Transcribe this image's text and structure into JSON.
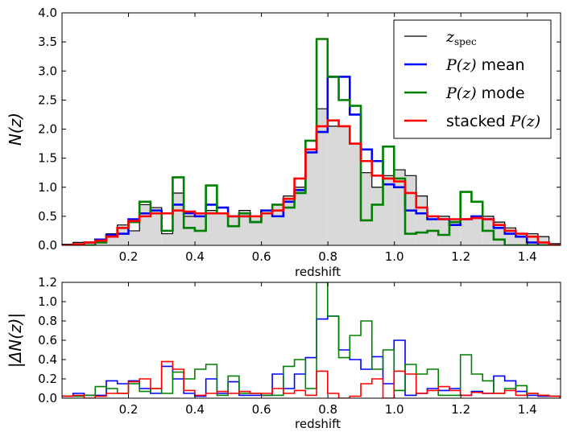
{
  "chart_data": [
    {
      "type": "histogram",
      "title": "",
      "xlabel": "redshift",
      "ylabel": "N(z)",
      "xlim": [
        0.0,
        1.5
      ],
      "ylim": [
        0.0,
        4.0
      ],
      "xticks": [
        0.2,
        0.4,
        0.6,
        0.8,
        1.0,
        1.2,
        1.4
      ],
      "xtick_labels": [
        "0.2",
        "0.4",
        "0.6",
        "0.8",
        "1.0",
        "1.2",
        "1.4"
      ],
      "yticks": [
        0.0,
        0.5,
        1.0,
        1.5,
        2.0,
        2.5,
        3.0,
        3.5,
        4.0
      ],
      "ytick_labels": [
        "0.0",
        "0.5",
        "1.0",
        "1.5",
        "2.0",
        "2.5",
        "3.0",
        "3.5",
        "4.0"
      ],
      "bin_start": 0.0,
      "bin_width": 0.0333,
      "legend": {
        "position": "top-right",
        "entries": [
          {
            "label": "z",
            "sub": "spec",
            "prefix": "",
            "suffix": "",
            "color": "#000000"
          },
          {
            "label": "P(z)",
            "sub": "",
            "prefix": "",
            "suffix": " mean",
            "color": "#0000ff"
          },
          {
            "label": "P(z)",
            "sub": "",
            "prefix": "",
            "suffix": " mode",
            "color": "#008000"
          },
          {
            "label": "P(z)",
            "sub": "",
            "prefix": "stacked ",
            "suffix": "",
            "color": "#ff0000"
          }
        ]
      },
      "series": [
        {
          "name": "z_spec",
          "color": "#000000",
          "fill": "#d9d9d9",
          "values": [
            0.02,
            0.05,
            0.05,
            0.1,
            0.2,
            0.35,
            0.25,
            0.7,
            0.65,
            0.2,
            0.9,
            0.5,
            0.55,
            0.6,
            0.55,
            0.5,
            0.6,
            0.5,
            0.6,
            0.7,
            0.85,
            1.0,
            1.6,
            2.35,
            2.05,
            2.05,
            1.75,
            1.25,
            1.0,
            1.2,
            1.3,
            1.2,
            0.85,
            0.5,
            0.5,
            0.45,
            0.45,
            0.5,
            0.5,
            0.4,
            0.3,
            0.2,
            0.2,
            0.15,
            0.03,
            0.03
          ]
        },
        {
          "name": "P(z) mean",
          "color": "#0000ff",
          "values": [
            0.0,
            0.0,
            0.05,
            0.1,
            0.18,
            0.2,
            0.45,
            0.55,
            0.6,
            0.55,
            0.7,
            0.55,
            0.5,
            0.7,
            0.65,
            0.5,
            0.5,
            0.4,
            0.6,
            0.5,
            0.75,
            0.95,
            1.6,
            1.95,
            2.9,
            2.9,
            2.25,
            1.65,
            1.45,
            1.05,
            1.0,
            0.6,
            0.55,
            0.45,
            0.45,
            0.35,
            0.45,
            0.5,
            0.45,
            0.3,
            0.2,
            0.15,
            0.05,
            0.0,
            0.0,
            0.0
          ]
        },
        {
          "name": "P(z) mode",
          "color": "#008000",
          "values": [
            0.0,
            0.0,
            0.0,
            0.05,
            0.15,
            0.3,
            0.4,
            0.75,
            0.55,
            0.25,
            1.17,
            0.3,
            0.25,
            1.03,
            0.55,
            0.33,
            0.55,
            0.4,
            0.55,
            0.7,
            0.65,
            0.9,
            1.8,
            3.55,
            2.9,
            2.5,
            2.4,
            0.43,
            0.7,
            1.7,
            1.15,
            0.2,
            0.22,
            0.25,
            0.18,
            0.4,
            0.92,
            0.75,
            0.25,
            0.1,
            0.0,
            0.0,
            0.0,
            0.0,
            0.0,
            0.0
          ]
        },
        {
          "name": "stacked P(z)",
          "color": "#ff0000",
          "values": [
            0.0,
            0.02,
            0.05,
            0.08,
            0.15,
            0.3,
            0.42,
            0.5,
            0.55,
            0.55,
            0.6,
            0.58,
            0.55,
            0.55,
            0.55,
            0.5,
            0.5,
            0.5,
            0.55,
            0.6,
            0.8,
            1.15,
            1.65,
            2.05,
            2.15,
            2.05,
            1.75,
            1.45,
            1.2,
            1.15,
            1.1,
            0.9,
            0.65,
            0.5,
            0.45,
            0.45,
            0.45,
            0.47,
            0.45,
            0.35,
            0.25,
            0.2,
            0.15,
            0.05,
            0.0,
            0.0
          ]
        }
      ]
    },
    {
      "type": "histogram",
      "title": "",
      "xlabel": "redshift",
      "ylabel": "|ΔN(z)|",
      "xlim": [
        0.0,
        1.5
      ],
      "ylim": [
        0.0,
        1.2
      ],
      "xticks": [
        0.2,
        0.4,
        0.6,
        0.8,
        1.0,
        1.2,
        1.4
      ],
      "xtick_labels": [
        "0.2",
        "0.4",
        "0.6",
        "0.8",
        "1.0",
        "1.2",
        "1.4"
      ],
      "yticks": [
        0.0,
        0.2,
        0.4,
        0.6,
        0.8,
        1.0,
        1.2
      ],
      "ytick_labels": [
        "0.0",
        "0.2",
        "0.4",
        "0.6",
        "0.8",
        "1.0",
        "1.2"
      ],
      "bin_start": 0.0,
      "bin_width": 0.0333,
      "series": [
        {
          "name": "|ΔN| P(z) mean",
          "color": "#0000ff",
          "values": [
            0.02,
            0.05,
            0.03,
            0.03,
            0.18,
            0.15,
            0.18,
            0.1,
            0.05,
            0.33,
            0.2,
            0.05,
            0.02,
            0.2,
            0.05,
            0.17,
            0.03,
            0.03,
            0.03,
            0.25,
            0.1,
            0.25,
            0.42,
            0.82,
            0.85,
            0.5,
            0.4,
            0.3,
            0.43,
            0.15,
            0.6,
            0.03,
            0.05,
            0.1,
            0.08,
            0.1,
            0.03,
            0.07,
            0.05,
            0.23,
            0.18,
            0.07,
            0.03,
            0.02,
            0.02,
            0.0
          ]
        },
        {
          "name": "|ΔN| P(z) mode",
          "color": "#008000",
          "values": [
            0.02,
            0.02,
            0.03,
            0.12,
            0.1,
            0.05,
            0.15,
            0.07,
            0.1,
            0.05,
            0.27,
            0.2,
            0.3,
            0.35,
            0.03,
            0.23,
            0.05,
            0.05,
            0.03,
            0.03,
            0.33,
            0.4,
            0.1,
            1.2,
            0.85,
            0.42,
            0.65,
            0.8,
            0.3,
            0.5,
            0.08,
            0.35,
            0.25,
            0.3,
            0.03,
            0.03,
            0.45,
            0.25,
            0.18,
            0.05,
            0.1,
            0.13,
            0.05,
            0.03,
            0.02,
            0.0
          ]
        },
        {
          "name": "|ΔN| stacked P(z)",
          "color": "#ff0000",
          "values": [
            0.02,
            0.03,
            0.0,
            0.02,
            0.05,
            0.05,
            0.17,
            0.2,
            0.1,
            0.38,
            0.3,
            0.08,
            0.03,
            0.05,
            0.07,
            0.05,
            0.07,
            0.05,
            0.05,
            0.1,
            0.05,
            0.08,
            0.03,
            0.28,
            0.05,
            0.0,
            0.02,
            0.15,
            0.2,
            0.0,
            0.28,
            0.25,
            0.05,
            0.08,
            0.12,
            0.08,
            0.03,
            0.06,
            0.05,
            0.05,
            0.08,
            0.03,
            0.05,
            0.03,
            0.02,
            0.0
          ]
        }
      ]
    }
  ]
}
